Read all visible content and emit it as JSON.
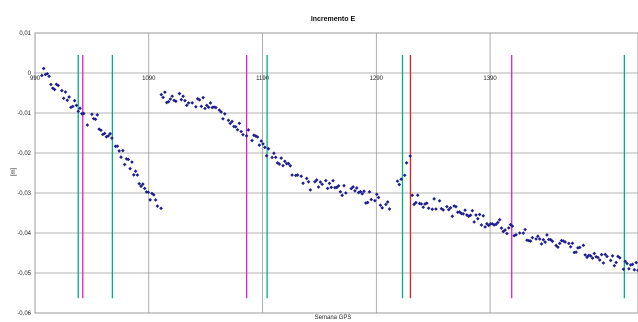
{
  "chart_data": {
    "type": "scatter",
    "title": "Incremento E",
    "xlabel": "Semana GPS",
    "ylabel": "[m]",
    "xlim": [
      990,
      1520
    ],
    "ylim": [
      -0.06,
      0.01
    ],
    "xticks": [
      990,
      1090,
      1190,
      1290,
      1390
    ],
    "xtick_labels": [
      "990",
      "1090",
      "1190",
      "1290",
      "1390"
    ],
    "yticks": [
      0.01,
      0,
      -0.01,
      -0.02,
      -0.03,
      -0.04,
      -0.05,
      -0.06
    ],
    "ytick_labels": [
      "0,01",
      "0",
      "-0,01",
      "-0,02",
      "-0,03",
      "-0,04",
      "-0,05",
      "-0,06"
    ],
    "grid": true,
    "point_color": "#1f1f8f",
    "segments": [
      {
        "x_start": 996,
        "x_end": 1037,
        "y_start": 0.0,
        "y_end": -0.012
      },
      {
        "x_start": 1040,
        "x_end": 1101,
        "y_start": -0.01,
        "y_end": -0.034
      },
      {
        "x_start": 1101,
        "x_end": 1150,
        "y_start": -0.006,
        "y_end": -0.008
      },
      {
        "x_start": 1152,
        "x_end": 1232,
        "y_start": -0.01,
        "y_end": -0.028
      },
      {
        "x_start": 1236,
        "x_end": 1303,
        "y_start": -0.027,
        "y_end": -0.033
      },
      {
        "x_start": 1307,
        "x_end": 1320,
        "y_start": -0.028,
        "y_end": -0.022
      },
      {
        "x_start": 1320,
        "x_end": 1520,
        "y_start": -0.031,
        "y_end": -0.049
      }
    ],
    "vertical_markers": [
      {
        "x": 1028,
        "color": "#00b080"
      },
      {
        "x": 1032,
        "color": "#e020c0"
      },
      {
        "x": 1058,
        "color": "#00b080"
      },
      {
        "x": 1176,
        "color": "#e020c0"
      },
      {
        "x": 1194,
        "color": "#00b080"
      },
      {
        "x": 1313,
        "color": "#00b080"
      },
      {
        "x": 1320,
        "color": "#e02020"
      },
      {
        "x": 1409,
        "color": "#e020c0"
      },
      {
        "x": 1508,
        "color": "#00b080"
      }
    ]
  }
}
